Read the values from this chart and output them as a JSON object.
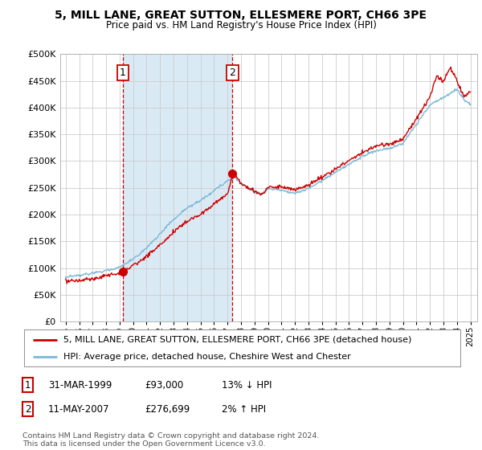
{
  "title": "5, MILL LANE, GREAT SUTTON, ELLESMERE PORT, CH66 3PE",
  "subtitle": "Price paid vs. HM Land Registry's House Price Index (HPI)",
  "legend_line1": "5, MILL LANE, GREAT SUTTON, ELLESMERE PORT, CH66 3PE (detached house)",
  "legend_line2": "HPI: Average price, detached house, Cheshire West and Chester",
  "annotation1_date": "31-MAR-1999",
  "annotation1_price": "£93,000",
  "annotation1_hpi": "13% ↓ HPI",
  "annotation2_date": "11-MAY-2007",
  "annotation2_price": "£276,699",
  "annotation2_hpi": "2% ↑ HPI",
  "footer": "Contains HM Land Registry data © Crown copyright and database right 2024.\nThis data is licensed under the Open Government Licence v3.0.",
  "hpi_color": "#7ab8d9",
  "price_color": "#cc0000",
  "annotation_color": "#cc0000",
  "shade_color": "#daeaf5",
  "ylim": [
    0,
    500000
  ],
  "yticks": [
    0,
    50000,
    100000,
    150000,
    200000,
    250000,
    300000,
    350000,
    400000,
    450000,
    500000
  ],
  "bg_color": "#ffffff",
  "grid_color": "#cccccc",
  "sale1_year": 1999.25,
  "sale1_value": 93000,
  "sale2_year": 2007.37,
  "sale2_value": 276699
}
